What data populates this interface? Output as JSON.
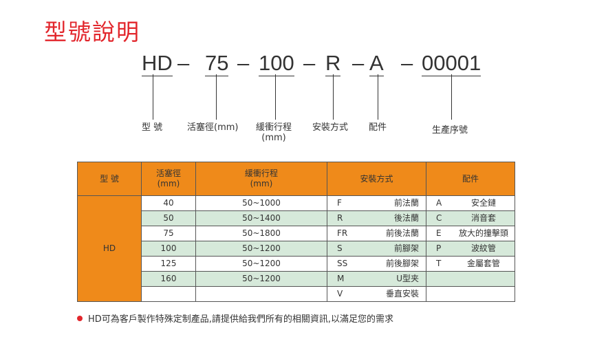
{
  "title": "型號說明",
  "code": {
    "parts": [
      "HD",
      "75",
      "100",
      "R",
      "A",
      "00001"
    ],
    "sep": "–",
    "labels": [
      "型 號",
      "活塞徑(mm)",
      "緩衝行程",
      "安裝方式",
      "配件",
      "生產序號"
    ],
    "label_sub": "(mm)"
  },
  "table": {
    "headers": [
      "型 號",
      "活塞徑",
      "(mm)",
      "緩衝行程",
      "(mm)",
      "安裝方式",
      "配件"
    ],
    "model": "HD",
    "rows": [
      {
        "bore": "40",
        "stroke": "50~1000",
        "mcode": "F",
        "mount": "前法蘭",
        "acode": "A",
        "acc": "安全鏈"
      },
      {
        "bore": "50",
        "stroke": "50~1400",
        "mcode": "R",
        "mount": "後法蘭",
        "acode": "C",
        "acc": "消音套"
      },
      {
        "bore": "75",
        "stroke": "50~1800",
        "mcode": "FR",
        "mount": "前後法蘭",
        "acode": "E",
        "acc": "放大的撞擊頭"
      },
      {
        "bore": "100",
        "stroke": "50~1200",
        "mcode": "S",
        "mount": "前腳架",
        "acode": "P",
        "acc": "波紋管"
      },
      {
        "bore": "125",
        "stroke": "50~1200",
        "mcode": "SS",
        "mount": "前後腳架",
        "acode": "T",
        "acc": "金屬套管"
      },
      {
        "bore": "160",
        "stroke": "50~1200",
        "mcode": "M",
        "mount": "U型夹",
        "acode": "",
        "acc": ""
      },
      {
        "bore": "",
        "stroke": "",
        "mcode": "V",
        "mount": "垂直安裝",
        "acode": "",
        "acc": ""
      }
    ]
  },
  "note": "HD可為客戶製作特殊定制產品,請提供給我們所有的相關資訊,以滿足您的需求",
  "colors": {
    "accent": "#e2262c",
    "header": "#ef8a1a",
    "stripe": "#d6e9da"
  }
}
